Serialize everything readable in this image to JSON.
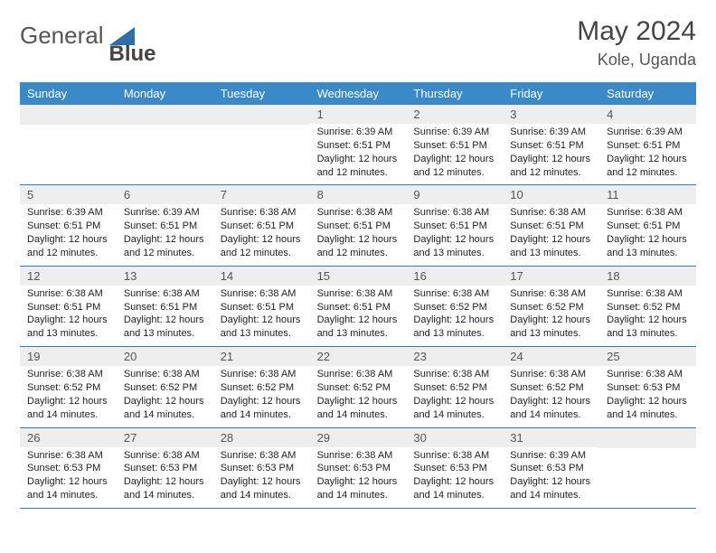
{
  "logo": {
    "text_a": "General",
    "text_b": "Blue",
    "triangle_color": "#2f6ea8"
  },
  "title": "May 2024",
  "location": "Kole, Uganda",
  "header_bg": "#3a89c9",
  "day_num_bg": "#eeeeee",
  "border_color": "#3a7aa8",
  "dow": [
    "Sunday",
    "Monday",
    "Tuesday",
    "Wednesday",
    "Thursday",
    "Friday",
    "Saturday"
  ],
  "weeks": [
    [
      {
        "n": "",
        "sr": "",
        "ss": "",
        "dl": ""
      },
      {
        "n": "",
        "sr": "",
        "ss": "",
        "dl": ""
      },
      {
        "n": "",
        "sr": "",
        "ss": "",
        "dl": ""
      },
      {
        "n": "1",
        "sr": "6:39 AM",
        "ss": "6:51 PM",
        "dl": "12 hours and 12 minutes."
      },
      {
        "n": "2",
        "sr": "6:39 AM",
        "ss": "6:51 PM",
        "dl": "12 hours and 12 minutes."
      },
      {
        "n": "3",
        "sr": "6:39 AM",
        "ss": "6:51 PM",
        "dl": "12 hours and 12 minutes."
      },
      {
        "n": "4",
        "sr": "6:39 AM",
        "ss": "6:51 PM",
        "dl": "12 hours and 12 minutes."
      }
    ],
    [
      {
        "n": "5",
        "sr": "6:39 AM",
        "ss": "6:51 PM",
        "dl": "12 hours and 12 minutes."
      },
      {
        "n": "6",
        "sr": "6:39 AM",
        "ss": "6:51 PM",
        "dl": "12 hours and 12 minutes."
      },
      {
        "n": "7",
        "sr": "6:38 AM",
        "ss": "6:51 PM",
        "dl": "12 hours and 12 minutes."
      },
      {
        "n": "8",
        "sr": "6:38 AM",
        "ss": "6:51 PM",
        "dl": "12 hours and 12 minutes."
      },
      {
        "n": "9",
        "sr": "6:38 AM",
        "ss": "6:51 PM",
        "dl": "12 hours and 13 minutes."
      },
      {
        "n": "10",
        "sr": "6:38 AM",
        "ss": "6:51 PM",
        "dl": "12 hours and 13 minutes."
      },
      {
        "n": "11",
        "sr": "6:38 AM",
        "ss": "6:51 PM",
        "dl": "12 hours and 13 minutes."
      }
    ],
    [
      {
        "n": "12",
        "sr": "6:38 AM",
        "ss": "6:51 PM",
        "dl": "12 hours and 13 minutes."
      },
      {
        "n": "13",
        "sr": "6:38 AM",
        "ss": "6:51 PM",
        "dl": "12 hours and 13 minutes."
      },
      {
        "n": "14",
        "sr": "6:38 AM",
        "ss": "6:51 PM",
        "dl": "12 hours and 13 minutes."
      },
      {
        "n": "15",
        "sr": "6:38 AM",
        "ss": "6:51 PM",
        "dl": "12 hours and 13 minutes."
      },
      {
        "n": "16",
        "sr": "6:38 AM",
        "ss": "6:52 PM",
        "dl": "12 hours and 13 minutes."
      },
      {
        "n": "17",
        "sr": "6:38 AM",
        "ss": "6:52 PM",
        "dl": "12 hours and 13 minutes."
      },
      {
        "n": "18",
        "sr": "6:38 AM",
        "ss": "6:52 PM",
        "dl": "12 hours and 13 minutes."
      }
    ],
    [
      {
        "n": "19",
        "sr": "6:38 AM",
        "ss": "6:52 PM",
        "dl": "12 hours and 14 minutes."
      },
      {
        "n": "20",
        "sr": "6:38 AM",
        "ss": "6:52 PM",
        "dl": "12 hours and 14 minutes."
      },
      {
        "n": "21",
        "sr": "6:38 AM",
        "ss": "6:52 PM",
        "dl": "12 hours and 14 minutes."
      },
      {
        "n": "22",
        "sr": "6:38 AM",
        "ss": "6:52 PM",
        "dl": "12 hours and 14 minutes."
      },
      {
        "n": "23",
        "sr": "6:38 AM",
        "ss": "6:52 PM",
        "dl": "12 hours and 14 minutes."
      },
      {
        "n": "24",
        "sr": "6:38 AM",
        "ss": "6:52 PM",
        "dl": "12 hours and 14 minutes."
      },
      {
        "n": "25",
        "sr": "6:38 AM",
        "ss": "6:53 PM",
        "dl": "12 hours and 14 minutes."
      }
    ],
    [
      {
        "n": "26",
        "sr": "6:38 AM",
        "ss": "6:53 PM",
        "dl": "12 hours and 14 minutes."
      },
      {
        "n": "27",
        "sr": "6:38 AM",
        "ss": "6:53 PM",
        "dl": "12 hours and 14 minutes."
      },
      {
        "n": "28",
        "sr": "6:38 AM",
        "ss": "6:53 PM",
        "dl": "12 hours and 14 minutes."
      },
      {
        "n": "29",
        "sr": "6:38 AM",
        "ss": "6:53 PM",
        "dl": "12 hours and 14 minutes."
      },
      {
        "n": "30",
        "sr": "6:38 AM",
        "ss": "6:53 PM",
        "dl": "12 hours and 14 minutes."
      },
      {
        "n": "31",
        "sr": "6:39 AM",
        "ss": "6:53 PM",
        "dl": "12 hours and 14 minutes."
      },
      {
        "n": "",
        "sr": "",
        "ss": "",
        "dl": ""
      }
    ]
  ],
  "labels": {
    "sunrise": "Sunrise:",
    "sunset": "Sunset:",
    "daylight": "Daylight:"
  }
}
